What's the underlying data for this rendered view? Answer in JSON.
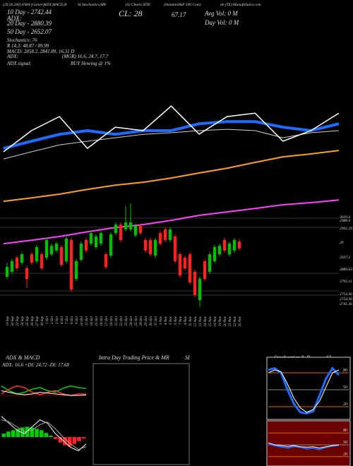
{
  "labels": {
    "top_line": [
      "(20,50,200) EMA (Gainer)",
      "ADX,MACD,B",
      "SI,Stochastics,MR",
      "(S) Charts SITE",
      "(Standard&P 500 Com)",
      "de (TE) MunafaSutra.com"
    ],
    "info": [
      "10 Day - 2742.44",
      "20 Day - 2880.39",
      "50 Day - 2652.07",
      "Stochastics: 76",
      "R 14,3: 48.87 / 89.99",
      "MACD: 2858.2, 2841.89, 16.31 D"
    ],
    "adx_left": "ADX:",
    "adx_right": "(MGR) 16.6, 24.7, 17.7",
    "signal_left": "ADX signal:",
    "signal_right": "BUY Slowing @ 1%",
    "close": "CL: 28",
    "change": "67.17",
    "avg_vol": "Avg Vol: 0 M",
    "day_vol": "Day Vol: 0 M",
    "levels": [
      "3010.4",
      "2988.9",
      "2992.29",
      "29",
      "2937.2",
      "2889.63",
      "2792.11",
      "2754.36",
      "2754.36",
      "2741.36"
    ],
    "adx_title": "ADX & MACD",
    "adx_values": "ADX: 16.6 +DI: 24.72 -DI: 17.68",
    "intraday_title": "Intra Day Trading Price & MR",
    "intraday_si": "SI",
    "stoch_title": "Stochastics & R",
    "stoch_si": "SI"
  },
  "chart_data": [
    {
      "type": "candlestick",
      "ylim": [
        2700,
        3500
      ],
      "up_color": "#00c000",
      "down_color": "#ff2020",
      "categories": [
        "19 Sep",
        "20 Sep",
        "23 Sep",
        "24 Sep",
        "25 Sep",
        "26 Sep",
        "27 Sep",
        "30 Sep",
        "1 Oct",
        "2 Oct",
        "3 Oct",
        "4 Oct",
        "7 Oct",
        "8 Oct",
        "9 Oct",
        "10 Oct",
        "11 Oct",
        "14 Oct",
        "15 Oct",
        "16 Oct",
        "17 Oct",
        "18 Oct",
        "21 Oct",
        "22 Oct",
        "23 Oct",
        "24 Oct",
        "25 Oct",
        "28 Oct",
        "29 Oct",
        "30 Oct",
        "31 Oct",
        "1 Nov",
        "4 Nov",
        "5 Nov",
        "6 Nov",
        "7 Nov",
        "8 Nov",
        "11 Nov",
        "12 Nov",
        "13 Nov",
        "14 Nov",
        "15 Nov",
        "18 Nov",
        "19 Nov",
        "20 Nov",
        "21 Nov",
        "22 Nov",
        "25 Nov"
      ],
      "open": [
        2828,
        2847,
        2900,
        2881,
        2860,
        2913,
        2887,
        2913,
        2900,
        2913,
        2927,
        2940,
        2887,
        2967,
        2820,
        2892,
        2967,
        2953,
        2940,
        2953,
        2913,
        2908,
        2993,
        3025,
        3007,
        3007,
        2985,
        3020,
        2967,
        2967,
        2908,
        2993,
        3007,
        2967,
        2980,
        2913,
        2900,
        2913,
        2847,
        2740,
        2887,
        2847,
        2887,
        2913,
        2967,
        2913,
        2927,
        2961
      ],
      "high": [
        2881,
        2895,
        2908,
        2921,
        2868,
        2921,
        2948,
        2921,
        2975,
        2953,
        2961,
        2948,
        2980,
        2975,
        2895,
        2961,
        2975,
        3001,
        2988,
        3001,
        2921,
        2996,
        3033,
        3033,
        3095,
        3105,
        3028,
        3028,
        2975,
        2975,
        2975,
        3001,
        3015,
        3015,
        2988,
        2921,
        2908,
        2921,
        2855,
        2828,
        2895,
        2921,
        2948,
        2953,
        2975,
        2961,
        2975,
        2969
      ],
      "low": [
        2820,
        2840,
        2852,
        2873,
        2785,
        2873,
        2879,
        2852,
        2892,
        2905,
        2919,
        2865,
        2879,
        2772,
        2812,
        2884,
        2919,
        2945,
        2932,
        2945,
        2857,
        2900,
        2985,
        2959,
        2999,
        2999,
        2977,
        2985,
        2919,
        2905,
        2900,
        2945,
        2959,
        2959,
        2879,
        2825,
        2852,
        2799,
        2751,
        2713,
        2812,
        2839,
        2879,
        2905,
        2919,
        2905,
        2919,
        2927
      ],
      "close": [
        2865,
        2887,
        2860,
        2913,
        2820,
        2881,
        2940,
        2860,
        2967,
        2945,
        2953,
        2873,
        2972,
        2780,
        2887,
        2953,
        2927,
        2993,
        2980,
        2993,
        2865,
        2988,
        3025,
        2967,
        3033,
        3033,
        3020,
        2993,
        2927,
        2913,
        2967,
        2953,
        2967,
        3007,
        2887,
        2833,
        2860,
        2807,
        2759,
        2820,
        2820,
        2913,
        2940,
        2945,
        2927,
        2953,
        2967,
        2935
      ]
    },
    {
      "type": "line",
      "ylim": [
        2700,
        3500
      ],
      "series": [
        {
          "color": "#ffa020",
          "width": 2,
          "values": [
            3113,
            3126,
            3140,
            3158,
            3174,
            3185,
            3201,
            3220,
            3238,
            3260,
            3281,
            3292,
            3305
          ]
        },
        {
          "color": "#ff40ff",
          "width": 2,
          "values": [
            2953,
            2966,
            2980,
            2998,
            3014,
            3025,
            3041,
            3060,
            3073,
            3086,
            3100,
            3108,
            3118
          ]
        },
        {
          "color": "#d0d0d0",
          "width": 1,
          "values": [
            3273,
            3300,
            3326,
            3340,
            3353,
            3366,
            3372,
            3380,
            3385,
            3380,
            3353,
            3372,
            3380
          ]
        },
        {
          "color": "#1e6cff",
          "width": 4,
          "values": [
            3313,
            3340,
            3366,
            3380,
            3366,
            3380,
            3380,
            3406,
            3414,
            3414,
            3393,
            3380,
            3406
          ]
        },
        {
          "color": "#ffffff",
          "width": 1.5,
          "values": [
            3300,
            3380,
            3433,
            3313,
            3393,
            3380,
            3473,
            3367,
            3433,
            3446,
            3340,
            3380,
            3446
          ]
        }
      ]
    },
    {
      "type": "line",
      "ylim": [
        0,
        50
      ],
      "series": [
        {
          "color": "#00d000",
          "width": 1.5,
          "values": [
            28,
            22,
            18,
            20,
            24,
            26,
            22,
            20,
            25,
            28,
            26,
            24.72
          ]
        },
        {
          "color": "#ff3030",
          "width": 1.5,
          "values": [
            18,
            24,
            28,
            26,
            20,
            17,
            20,
            22,
            18,
            16,
            18,
            17.68
          ]
        },
        {
          "color": "#ffffff",
          "width": 1,
          "values": [
            22,
            20,
            18,
            17,
            18,
            20,
            19,
            18,
            17,
            16,
            16,
            16.6
          ]
        }
      ]
    },
    {
      "type": "histogram-line",
      "ylim": [
        -40,
        40
      ],
      "up_color": "#00d000",
      "down_color": "#ff2020",
      "values": [
        5,
        8,
        10,
        12,
        14,
        15,
        14,
        12,
        10,
        6,
        2,
        -3,
        -8,
        -12,
        -14,
        -10,
        -6,
        -2
      ],
      "series": [
        {
          "color": "#ffffff",
          "width": 1,
          "values": [
            30,
            20,
            10,
            5,
            15,
            25,
            20,
            5,
            -5,
            -15,
            -20,
            -10
          ]
        },
        {
          "color": "#aaaaaa",
          "width": 1,
          "values": [
            25,
            22,
            15,
            8,
            10,
            18,
            22,
            12,
            0,
            -10,
            -18,
            -14
          ]
        }
      ]
    },
    {
      "type": "line",
      "ylim": [
        0,
        100
      ],
      "yticks": [
        20,
        50,
        80
      ],
      "background": "#000000",
      "series": [
        {
          "color": "#1e6cff",
          "width": 3,
          "values": [
            85,
            88,
            80,
            50,
            25,
            10,
            8,
            12,
            40,
            70,
            88,
            76
          ]
        },
        {
          "color": "#ffffff",
          "width": 1,
          "values": [
            80,
            85,
            82,
            60,
            35,
            18,
            10,
            15,
            30,
            55,
            80,
            85
          ]
        }
      ]
    },
    {
      "type": "line",
      "ylim": [
        0,
        100
      ],
      "yticks": [
        20,
        50,
        80
      ],
      "background": "#6b0000",
      "series": [
        {
          "color": "#1e6cff",
          "width": 2,
          "values": [
            52,
            48,
            45,
            42,
            46,
            44,
            40,
            42,
            38,
            44,
            47,
            48.87
          ]
        },
        {
          "color": "#ffffff",
          "width": 1,
          "values": [
            55,
            50,
            48,
            46,
            48,
            45,
            44,
            45,
            42,
            45,
            48,
            50
          ]
        }
      ]
    }
  ]
}
